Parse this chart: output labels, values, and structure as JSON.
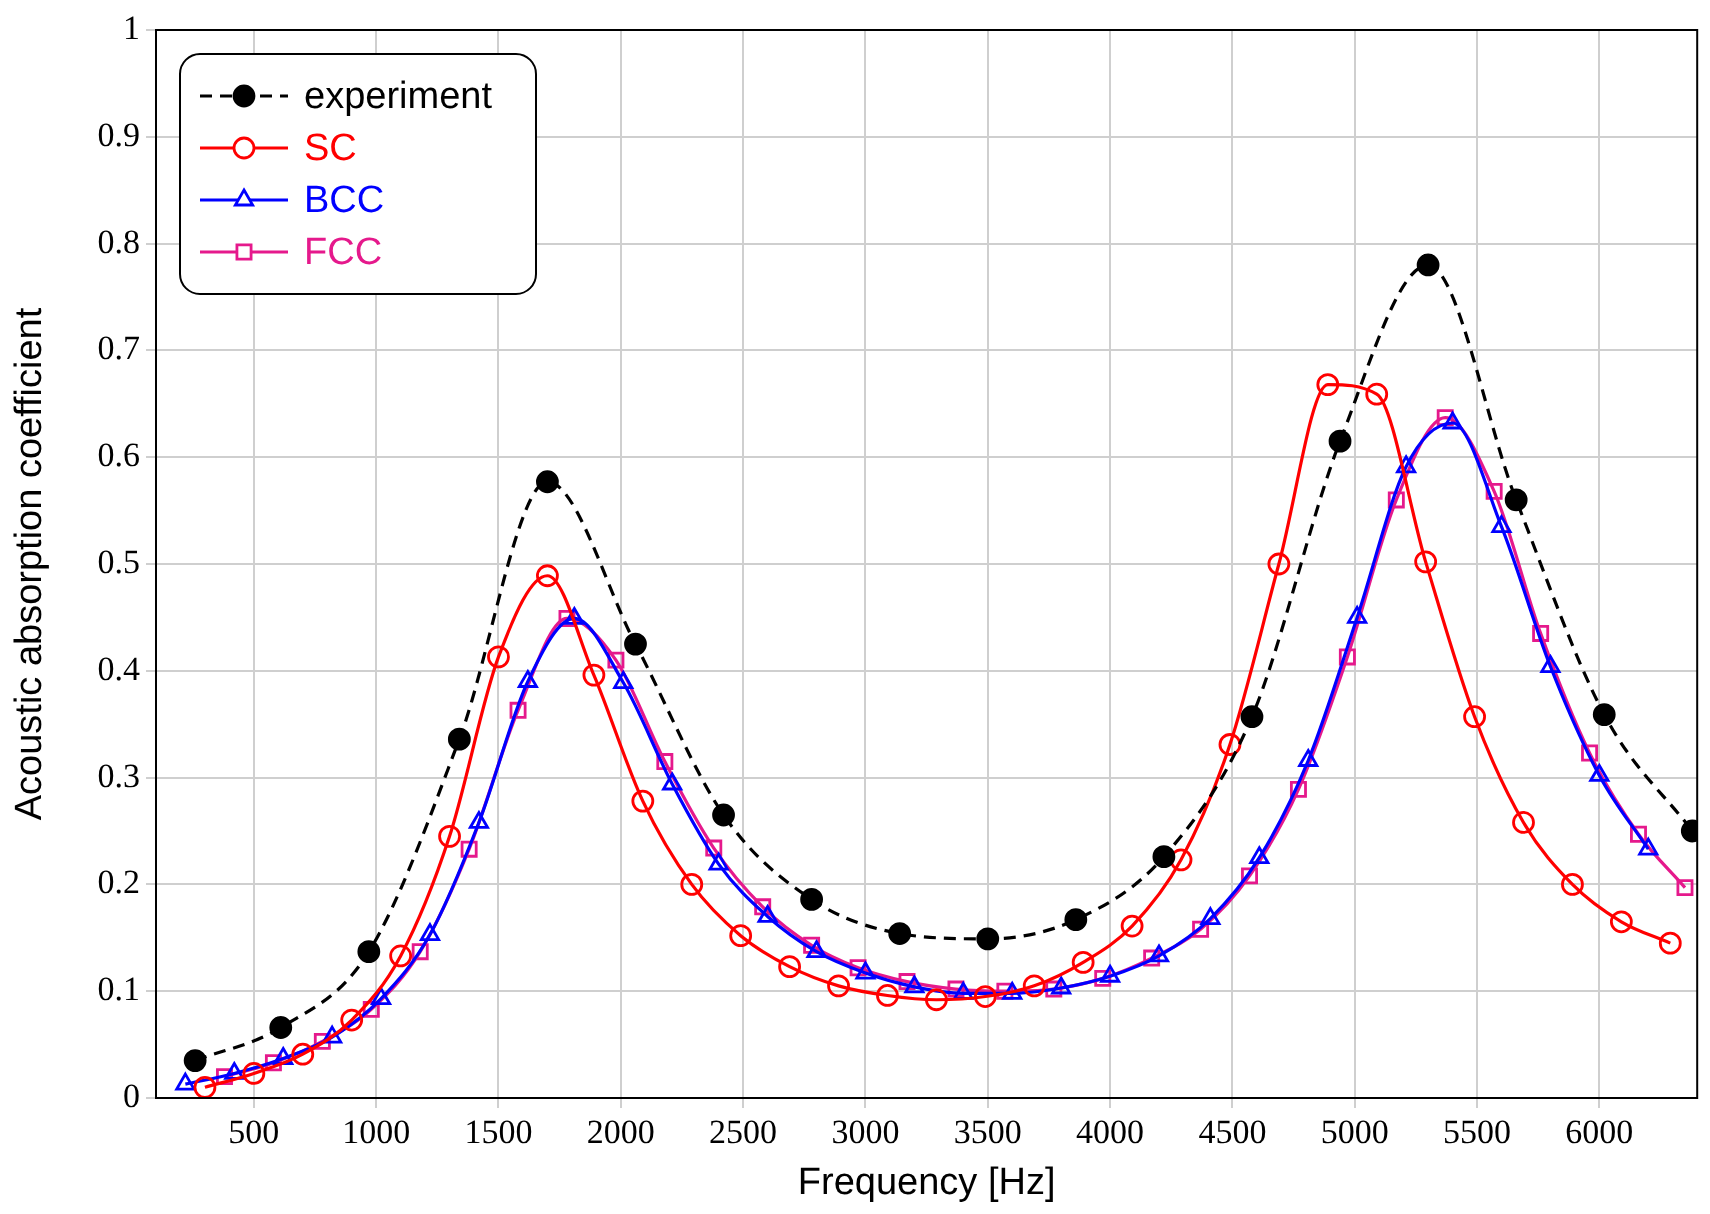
{
  "chart_data": {
    "type": "line",
    "xlabel": "Frequency [Hz]",
    "ylabel": "Acoustic absorption coefficient",
    "xlim": [
      100,
      6400
    ],
    "xticks": [
      500,
      1000,
      1500,
      2000,
      2500,
      3000,
      3500,
      4000,
      4500,
      5000,
      5500,
      6000
    ],
    "ylim": [
      0,
      1
    ],
    "yticks": [
      0,
      0.1,
      0.2,
      0.3,
      0.4,
      0.5,
      0.6,
      0.7,
      0.8,
      0.9,
      1
    ],
    "grid": true,
    "legend": "top left",
    "series": [
      {
        "name": "experiment",
        "color": "#000000",
        "marker": "circle",
        "line_style": "dashed",
        "x": [
          260,
          610,
          970,
          1340,
          1700,
          2060,
          2420,
          2780,
          3140,
          3500,
          3860,
          4220,
          4580,
          4940,
          5300,
          5660,
          6020,
          6380
        ],
        "values": [
          0.035,
          0.066,
          0.137,
          0.336,
          0.577,
          0.425,
          0.265,
          0.186,
          0.154,
          0.149,
          0.167,
          0.226,
          0.357,
          0.615,
          0.78,
          0.56,
          0.359,
          0.25
        ]
      },
      {
        "name": "SC",
        "color": "#ff0000",
        "marker": "circle",
        "line_style": "solid",
        "x": [
          300,
          500,
          700,
          900,
          1100,
          1300,
          1500,
          1700,
          1890,
          2090,
          2290,
          2490,
          2690,
          2890,
          3090,
          3290,
          3490,
          3690,
          3890,
          4090,
          4290,
          4490,
          4690,
          4890,
          5090,
          5290,
          5490,
          5690,
          5890,
          6090,
          6290
        ],
        "values": [
          0.01,
          0.023,
          0.041,
          0.073,
          0.133,
          0.245,
          0.413,
          0.489,
          0.396,
          0.278,
          0.2,
          0.152,
          0.123,
          0.105,
          0.096,
          0.092,
          0.095,
          0.105,
          0.127,
          0.161,
          0.223,
          0.331,
          0.5,
          0.668,
          0.659,
          0.502,
          0.357,
          0.258,
          0.2,
          0.165,
          0.145
        ]
      },
      {
        "name": "BCC",
        "color": "#0000ff",
        "marker": "triangle",
        "line_style": "solid",
        "x": [
          220,
          420,
          620,
          820,
          1020,
          1220,
          1420,
          1620,
          1810,
          2010,
          2210,
          2400,
          2600,
          2800,
          3000,
          3200,
          3400,
          3600,
          3800,
          4000,
          4200,
          4410,
          4610,
          4810,
          5010,
          5210,
          5400,
          5600,
          5800,
          6000,
          6200
        ],
        "values": [
          0.013,
          0.023,
          0.037,
          0.057,
          0.093,
          0.153,
          0.258,
          0.39,
          0.449,
          0.389,
          0.294,
          0.219,
          0.17,
          0.137,
          0.117,
          0.104,
          0.098,
          0.098,
          0.103,
          0.114,
          0.133,
          0.168,
          0.225,
          0.316,
          0.45,
          0.591,
          0.632,
          0.535,
          0.404,
          0.302,
          0.233
        ]
      },
      {
        "name": "FCC",
        "color": "#e5198c",
        "marker": "square",
        "line_style": "solid",
        "x": [
          380,
          580,
          780,
          980,
          1180,
          1380,
          1580,
          1780,
          1980,
          2180,
          2380,
          2580,
          2780,
          2970,
          3170,
          3370,
          3570,
          3770,
          3970,
          4170,
          4370,
          4570,
          4770,
          4970,
          5170,
          5370,
          5570,
          5760,
          5960,
          6160,
          6350
        ],
        "values": [
          0.02,
          0.033,
          0.053,
          0.083,
          0.137,
          0.233,
          0.363,
          0.449,
          0.41,
          0.315,
          0.234,
          0.179,
          0.143,
          0.122,
          0.109,
          0.102,
          0.1,
          0.102,
          0.112,
          0.131,
          0.158,
          0.208,
          0.289,
          0.413,
          0.56,
          0.637,
          0.568,
          0.435,
          0.323,
          0.247,
          0.197
        ]
      }
    ]
  }
}
